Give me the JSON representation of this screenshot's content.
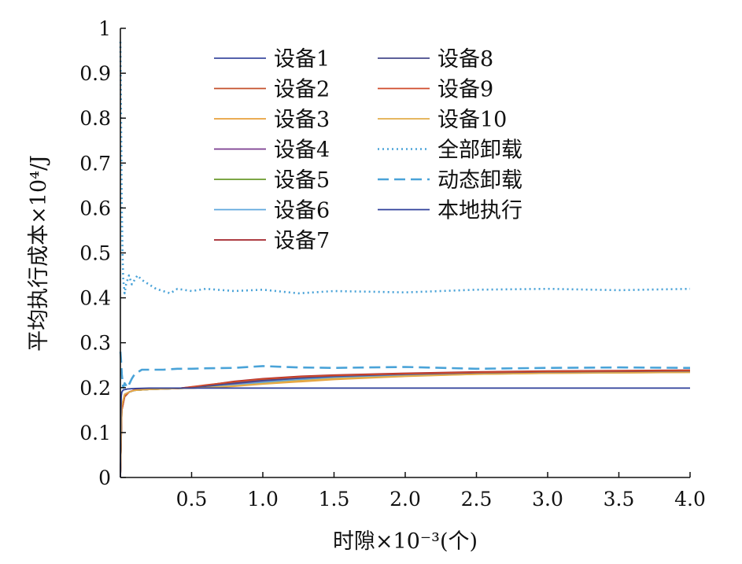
{
  "chart_data": {
    "type": "line",
    "xlabel": "时隙×10⁻³(个)",
    "ylabel": "平均执行成本×10⁴/J",
    "xlim": [
      0,
      4.0
    ],
    "ylim": [
      0,
      1
    ],
    "x_ticks": [
      "0.5",
      "1.0",
      "1.5",
      "2.0",
      "2.5",
      "3.0",
      "3.5",
      "4.0"
    ],
    "x_tick_values": [
      0.5,
      1.0,
      1.5,
      2.0,
      2.5,
      3.0,
      3.5,
      4.0
    ],
    "y_ticks": [
      "0",
      "0.1",
      "0.2",
      "0.3",
      "0.4",
      "0.5",
      "0.6",
      "0.7",
      "0.8",
      "0.9",
      "1"
    ],
    "y_tick_values": [
      0,
      0.1,
      0.2,
      0.3,
      0.4,
      0.5,
      0.6,
      0.7,
      0.8,
      0.9,
      1.0
    ],
    "grid": false,
    "legend_position": "top-center",
    "legend_columns": 2,
    "series": [
      {
        "name": "设备1",
        "color": "#3b4ba0",
        "style": "solid",
        "x": [
          0.0,
          0.01,
          0.03,
          0.06,
          0.1,
          0.2,
          0.4,
          0.6,
          0.8,
          1.0,
          1.25,
          1.5,
          2.0,
          2.5,
          3.0,
          3.5,
          4.0
        ],
        "y": [
          0.0,
          0.15,
          0.18,
          0.19,
          0.195,
          0.197,
          0.198,
          0.2,
          0.205,
          0.212,
          0.218,
          0.222,
          0.228,
          0.232,
          0.234,
          0.235,
          0.236
        ]
      },
      {
        "name": "设备2",
        "color": "#c4502b",
        "style": "solid",
        "x": [
          0.0,
          0.01,
          0.03,
          0.06,
          0.1,
          0.2,
          0.4,
          0.6,
          0.8,
          1.0,
          1.25,
          1.5,
          2.0,
          2.5,
          3.0,
          3.5,
          4.0
        ],
        "y": [
          0.0,
          0.16,
          0.185,
          0.19,
          0.194,
          0.196,
          0.198,
          0.204,
          0.212,
          0.218,
          0.223,
          0.226,
          0.23,
          0.234,
          0.236,
          0.237,
          0.238
        ]
      },
      {
        "name": "设备3",
        "color": "#e8a13c",
        "style": "solid",
        "x": [
          0.0,
          0.01,
          0.03,
          0.06,
          0.1,
          0.2,
          0.4,
          0.6,
          0.8,
          1.0,
          1.25,
          1.5,
          2.0,
          2.5,
          3.0,
          3.5,
          4.0
        ],
        "y": [
          0.0,
          0.15,
          0.18,
          0.19,
          0.194,
          0.196,
          0.198,
          0.2,
          0.203,
          0.208,
          0.213,
          0.218,
          0.225,
          0.23,
          0.232,
          0.233,
          0.234
        ]
      },
      {
        "name": "设备4",
        "color": "#7a3b8f",
        "style": "solid",
        "x": [
          0.0,
          0.01,
          0.03,
          0.06,
          0.1,
          0.2,
          0.4,
          0.6,
          0.8,
          1.0,
          1.25,
          1.5,
          2.0,
          2.5,
          3.0,
          3.5,
          4.0
        ],
        "y": [
          0.0,
          0.16,
          0.185,
          0.19,
          0.195,
          0.197,
          0.198,
          0.202,
          0.208,
          0.214,
          0.22,
          0.224,
          0.229,
          0.233,
          0.235,
          0.236,
          0.237
        ]
      },
      {
        "name": "设备5",
        "color": "#6a9a2c",
        "style": "solid",
        "x": [
          0.0,
          0.01,
          0.03,
          0.06,
          0.1,
          0.2,
          0.4,
          0.6,
          0.8,
          1.0,
          1.25,
          1.5,
          2.0,
          2.5,
          3.0,
          3.5,
          4.0
        ],
        "y": [
          0.0,
          0.15,
          0.18,
          0.19,
          0.194,
          0.196,
          0.198,
          0.2,
          0.205,
          0.21,
          0.216,
          0.221,
          0.227,
          0.231,
          0.233,
          0.234,
          0.235
        ]
      },
      {
        "name": "设备6",
        "color": "#5fa7dd",
        "style": "solid",
        "x": [
          0.0,
          0.01,
          0.03,
          0.06,
          0.1,
          0.2,
          0.4,
          0.6,
          0.8,
          1.0,
          1.25,
          1.5,
          2.0,
          2.5,
          3.0,
          3.5,
          4.0
        ],
        "y": [
          0.0,
          0.16,
          0.18,
          0.19,
          0.194,
          0.196,
          0.198,
          0.201,
          0.206,
          0.212,
          0.218,
          0.223,
          0.228,
          0.232,
          0.234,
          0.235,
          0.236
        ]
      },
      {
        "name": "设备7",
        "color": "#a3222a",
        "style": "solid",
        "x": [
          0.0,
          0.01,
          0.03,
          0.06,
          0.1,
          0.2,
          0.4,
          0.6,
          0.8,
          1.0,
          1.25,
          1.5,
          2.0,
          2.5,
          3.0,
          3.5,
          4.0
        ],
        "y": [
          0.0,
          0.15,
          0.185,
          0.19,
          0.195,
          0.197,
          0.198,
          0.205,
          0.214,
          0.22,
          0.225,
          0.228,
          0.232,
          0.235,
          0.237,
          0.238,
          0.239
        ]
      },
      {
        "name": "设备8",
        "color": "#464a8c",
        "style": "solid",
        "x": [
          0.0,
          0.01,
          0.03,
          0.06,
          0.1,
          0.2,
          0.4,
          0.6,
          0.8,
          1.0,
          1.25,
          1.5,
          2.0,
          2.5,
          3.0,
          3.5,
          4.0
        ],
        "y": [
          0.0,
          0.16,
          0.18,
          0.19,
          0.194,
          0.196,
          0.198,
          0.203,
          0.21,
          0.216,
          0.221,
          0.225,
          0.23,
          0.233,
          0.235,
          0.236,
          0.237
        ]
      },
      {
        "name": "设备9",
        "color": "#cf4a2a",
        "style": "solid",
        "x": [
          0.0,
          0.01,
          0.03,
          0.06,
          0.1,
          0.2,
          0.4,
          0.6,
          0.8,
          1.0,
          1.25,
          1.5,
          2.0,
          2.5,
          3.0,
          3.5,
          4.0
        ],
        "y": [
          0.0,
          0.15,
          0.18,
          0.19,
          0.195,
          0.197,
          0.198,
          0.206,
          0.213,
          0.219,
          0.224,
          0.227,
          0.231,
          0.234,
          0.236,
          0.237,
          0.238
        ]
      },
      {
        "name": "设备10",
        "color": "#e3ad4a",
        "style": "solid",
        "x": [
          0.0,
          0.01,
          0.03,
          0.06,
          0.1,
          0.2,
          0.4,
          0.6,
          0.8,
          1.0,
          1.25,
          1.5,
          2.0,
          2.5,
          3.0,
          3.5,
          4.0
        ],
        "y": [
          0.0,
          0.16,
          0.185,
          0.19,
          0.194,
          0.196,
          0.198,
          0.2,
          0.204,
          0.209,
          0.215,
          0.22,
          0.226,
          0.23,
          0.232,
          0.233,
          0.234
        ]
      },
      {
        "name": "全部卸载",
        "color": "#4aa3d8",
        "style": "dotted",
        "x": [
          0.0,
          0.005,
          0.01,
          0.015,
          0.02,
          0.03,
          0.04,
          0.06,
          0.08,
          0.1,
          0.12,
          0.15,
          0.2,
          0.25,
          0.3,
          0.35,
          0.4,
          0.5,
          0.6,
          0.8,
          1.0,
          1.25,
          1.5,
          2.0,
          2.5,
          3.0,
          3.5,
          4.0
        ],
        "y": [
          0.97,
          0.8,
          0.6,
          0.5,
          0.44,
          0.41,
          0.43,
          0.45,
          0.43,
          0.44,
          0.45,
          0.44,
          0.43,
          0.42,
          0.415,
          0.41,
          0.42,
          0.415,
          0.42,
          0.415,
          0.418,
          0.41,
          0.415,
          0.412,
          0.418,
          0.42,
          0.417,
          0.42
        ]
      },
      {
        "name": "动态卸载",
        "color": "#4aa3d8",
        "style": "dashed",
        "x": [
          0.0,
          0.005,
          0.01,
          0.02,
          0.03,
          0.05,
          0.08,
          0.1,
          0.15,
          0.2,
          0.3,
          0.4,
          0.5,
          0.6,
          0.8,
          1.0,
          1.25,
          1.5,
          2.0,
          2.5,
          3.0,
          3.5,
          4.0
        ],
        "y": [
          0.28,
          0.26,
          0.23,
          0.2,
          0.21,
          0.2,
          0.22,
          0.23,
          0.24,
          0.24,
          0.24,
          0.242,
          0.242,
          0.243,
          0.244,
          0.248,
          0.245,
          0.244,
          0.246,
          0.242,
          0.244,
          0.245,
          0.244
        ]
      },
      {
        "name": "本地执行",
        "color": "#2e3f9a",
        "style": "solid",
        "x": [
          0.0,
          0.003,
          0.006,
          0.01,
          0.02,
          0.05,
          0.1,
          0.2,
          4.0
        ],
        "y": [
          0.0,
          0.14,
          0.18,
          0.19,
          0.195,
          0.197,
          0.198,
          0.199,
          0.199
        ]
      }
    ]
  }
}
